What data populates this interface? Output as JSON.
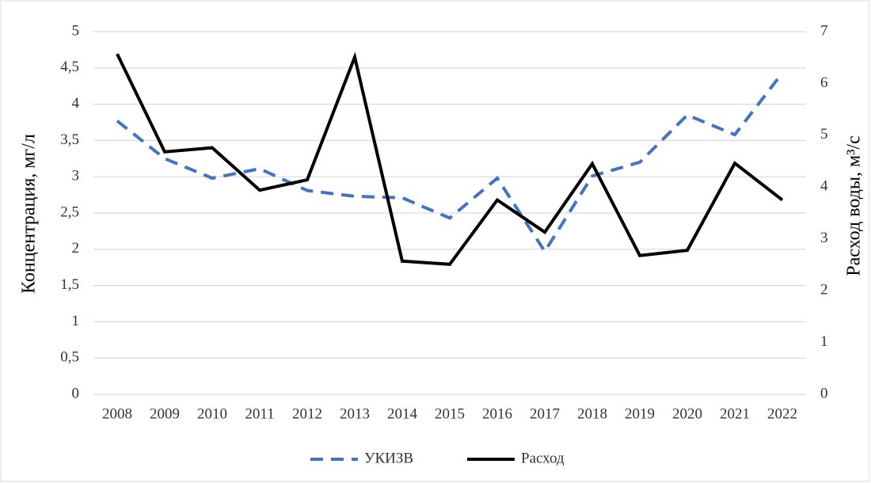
{
  "chart_data": {
    "type": "line",
    "categories": [
      "2008",
      "2009",
      "2010",
      "2011",
      "2012",
      "2013",
      "2014",
      "2015",
      "2016",
      "2017",
      "2018",
      "2019",
      "2020",
      "2021",
      "2022"
    ],
    "y_label": "Концентрация, мг/л",
    "y2_label": "Расход воды, м³/с",
    "ylim": [
      0,
      5
    ],
    "yticks": [
      0,
      {
        "value": 0.5,
        "label": "0,5"
      },
      1,
      {
        "value": 1.5,
        "label": "1,5"
      },
      2,
      {
        "value": 2.5,
        "label": "2,5"
      },
      3,
      {
        "value": 3.5,
        "label": "3,5"
      },
      4,
      {
        "value": 4.5,
        "label": "4,5"
      },
      5
    ],
    "y2lim": [
      0,
      7
    ],
    "y2ticks": [
      0,
      1,
      2,
      3,
      4,
      5,
      6,
      7
    ],
    "grid": true,
    "legend": "bottom",
    "series": [
      {
        "name": "УКИЗВ",
        "color": "#4472c4",
        "line_style": "dashed",
        "axis": "y",
        "values": [
          3.77,
          3.25,
          2.98,
          3.11,
          2.81,
          2.73,
          2.71,
          2.43,
          2.98,
          1.97,
          3.01,
          3.2,
          3.85,
          3.58,
          4.43
        ]
      },
      {
        "name": "Расход",
        "color": "#000000",
        "line_style": "solid",
        "axis": "y2",
        "values": [
          6.57,
          4.68,
          4.76,
          3.94,
          4.14,
          6.51,
          2.57,
          2.51,
          3.75,
          3.13,
          4.45,
          2.68,
          2.78,
          4.46,
          3.75
        ]
      }
    ]
  }
}
